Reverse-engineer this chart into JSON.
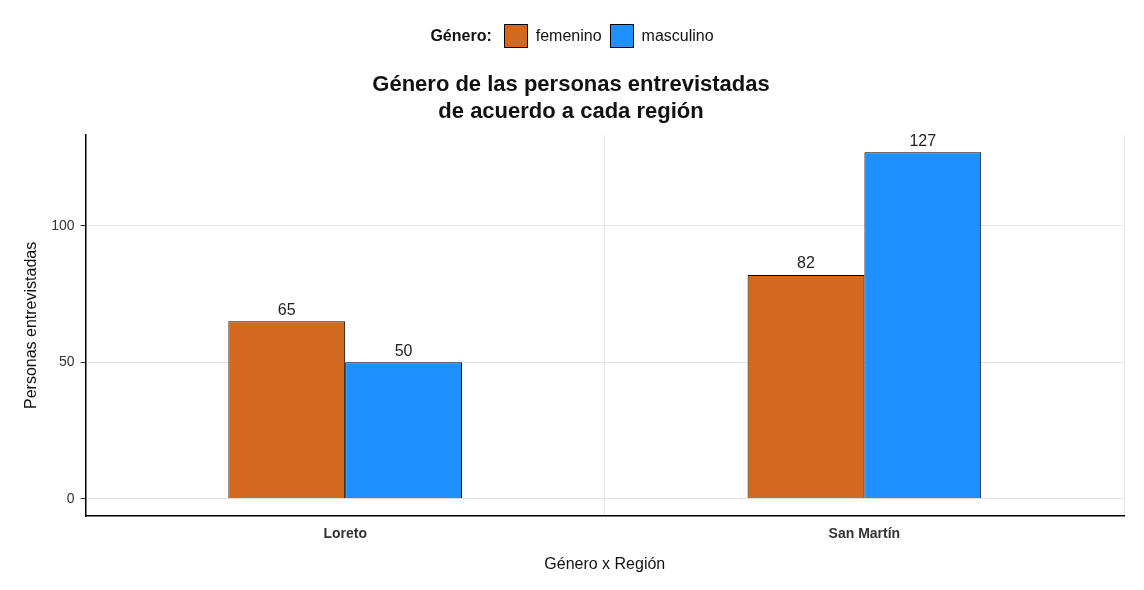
{
  "chart_data": {
    "type": "bar",
    "title": "Género de las personas entrevistadas\nde acuerdo a cada región",
    "xlabel": "Género x Región",
    "ylabel": "Personas entrevistadas",
    "legend_title": "Género:",
    "categories": [
      "Loreto",
      "San Martín"
    ],
    "series": [
      {
        "name": "femenino",
        "color": "#d2691e",
        "values": [
          65,
          82
        ]
      },
      {
        "name": "masculino",
        "color": "#1e90ff",
        "values": [
          50,
          127
        ]
      }
    ],
    "ylim": [
      -6.35,
      133.35
    ],
    "yticks": [
      0,
      50,
      100
    ],
    "grid": true,
    "legend": "top",
    "data_labels": true
  }
}
